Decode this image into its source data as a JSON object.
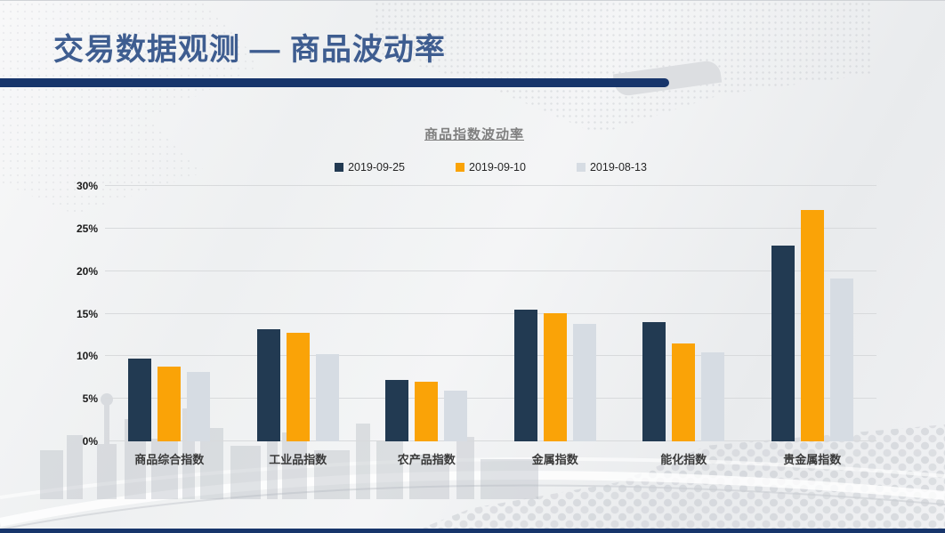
{
  "slide": {
    "title": "交易数据观测 — 商品波动率",
    "title_color": "#3e5d90",
    "accent_color": "#17356b"
  },
  "chart_data": {
    "type": "bar",
    "title": "商品指数波动率",
    "categories": [
      "商品综合指数",
      "工业品指数",
      "农产品指数",
      "金属指数",
      "能化指数",
      "贵金属指数"
    ],
    "series": [
      {
        "name": "2019-09-25",
        "color": "#223a52",
        "values": [
          9.7,
          13.2,
          7.2,
          15.5,
          14.0,
          23.0
        ]
      },
      {
        "name": "2019-09-10",
        "color": "#faa307",
        "values": [
          8.8,
          12.8,
          7.0,
          15.1,
          11.5,
          27.2
        ]
      },
      {
        "name": "2019-08-13",
        "color": "#d6dce3",
        "values": [
          8.2,
          10.3,
          6.0,
          13.8,
          10.5,
          19.1
        ]
      }
    ],
    "unit": "%",
    "ylim": [
      0,
      30
    ],
    "ytick_step": 5,
    "ytick_labels": [
      "0%",
      "5%",
      "10%",
      "15%",
      "20%",
      "25%",
      "30%"
    ],
    "grid": true,
    "legend_position": "top"
  }
}
